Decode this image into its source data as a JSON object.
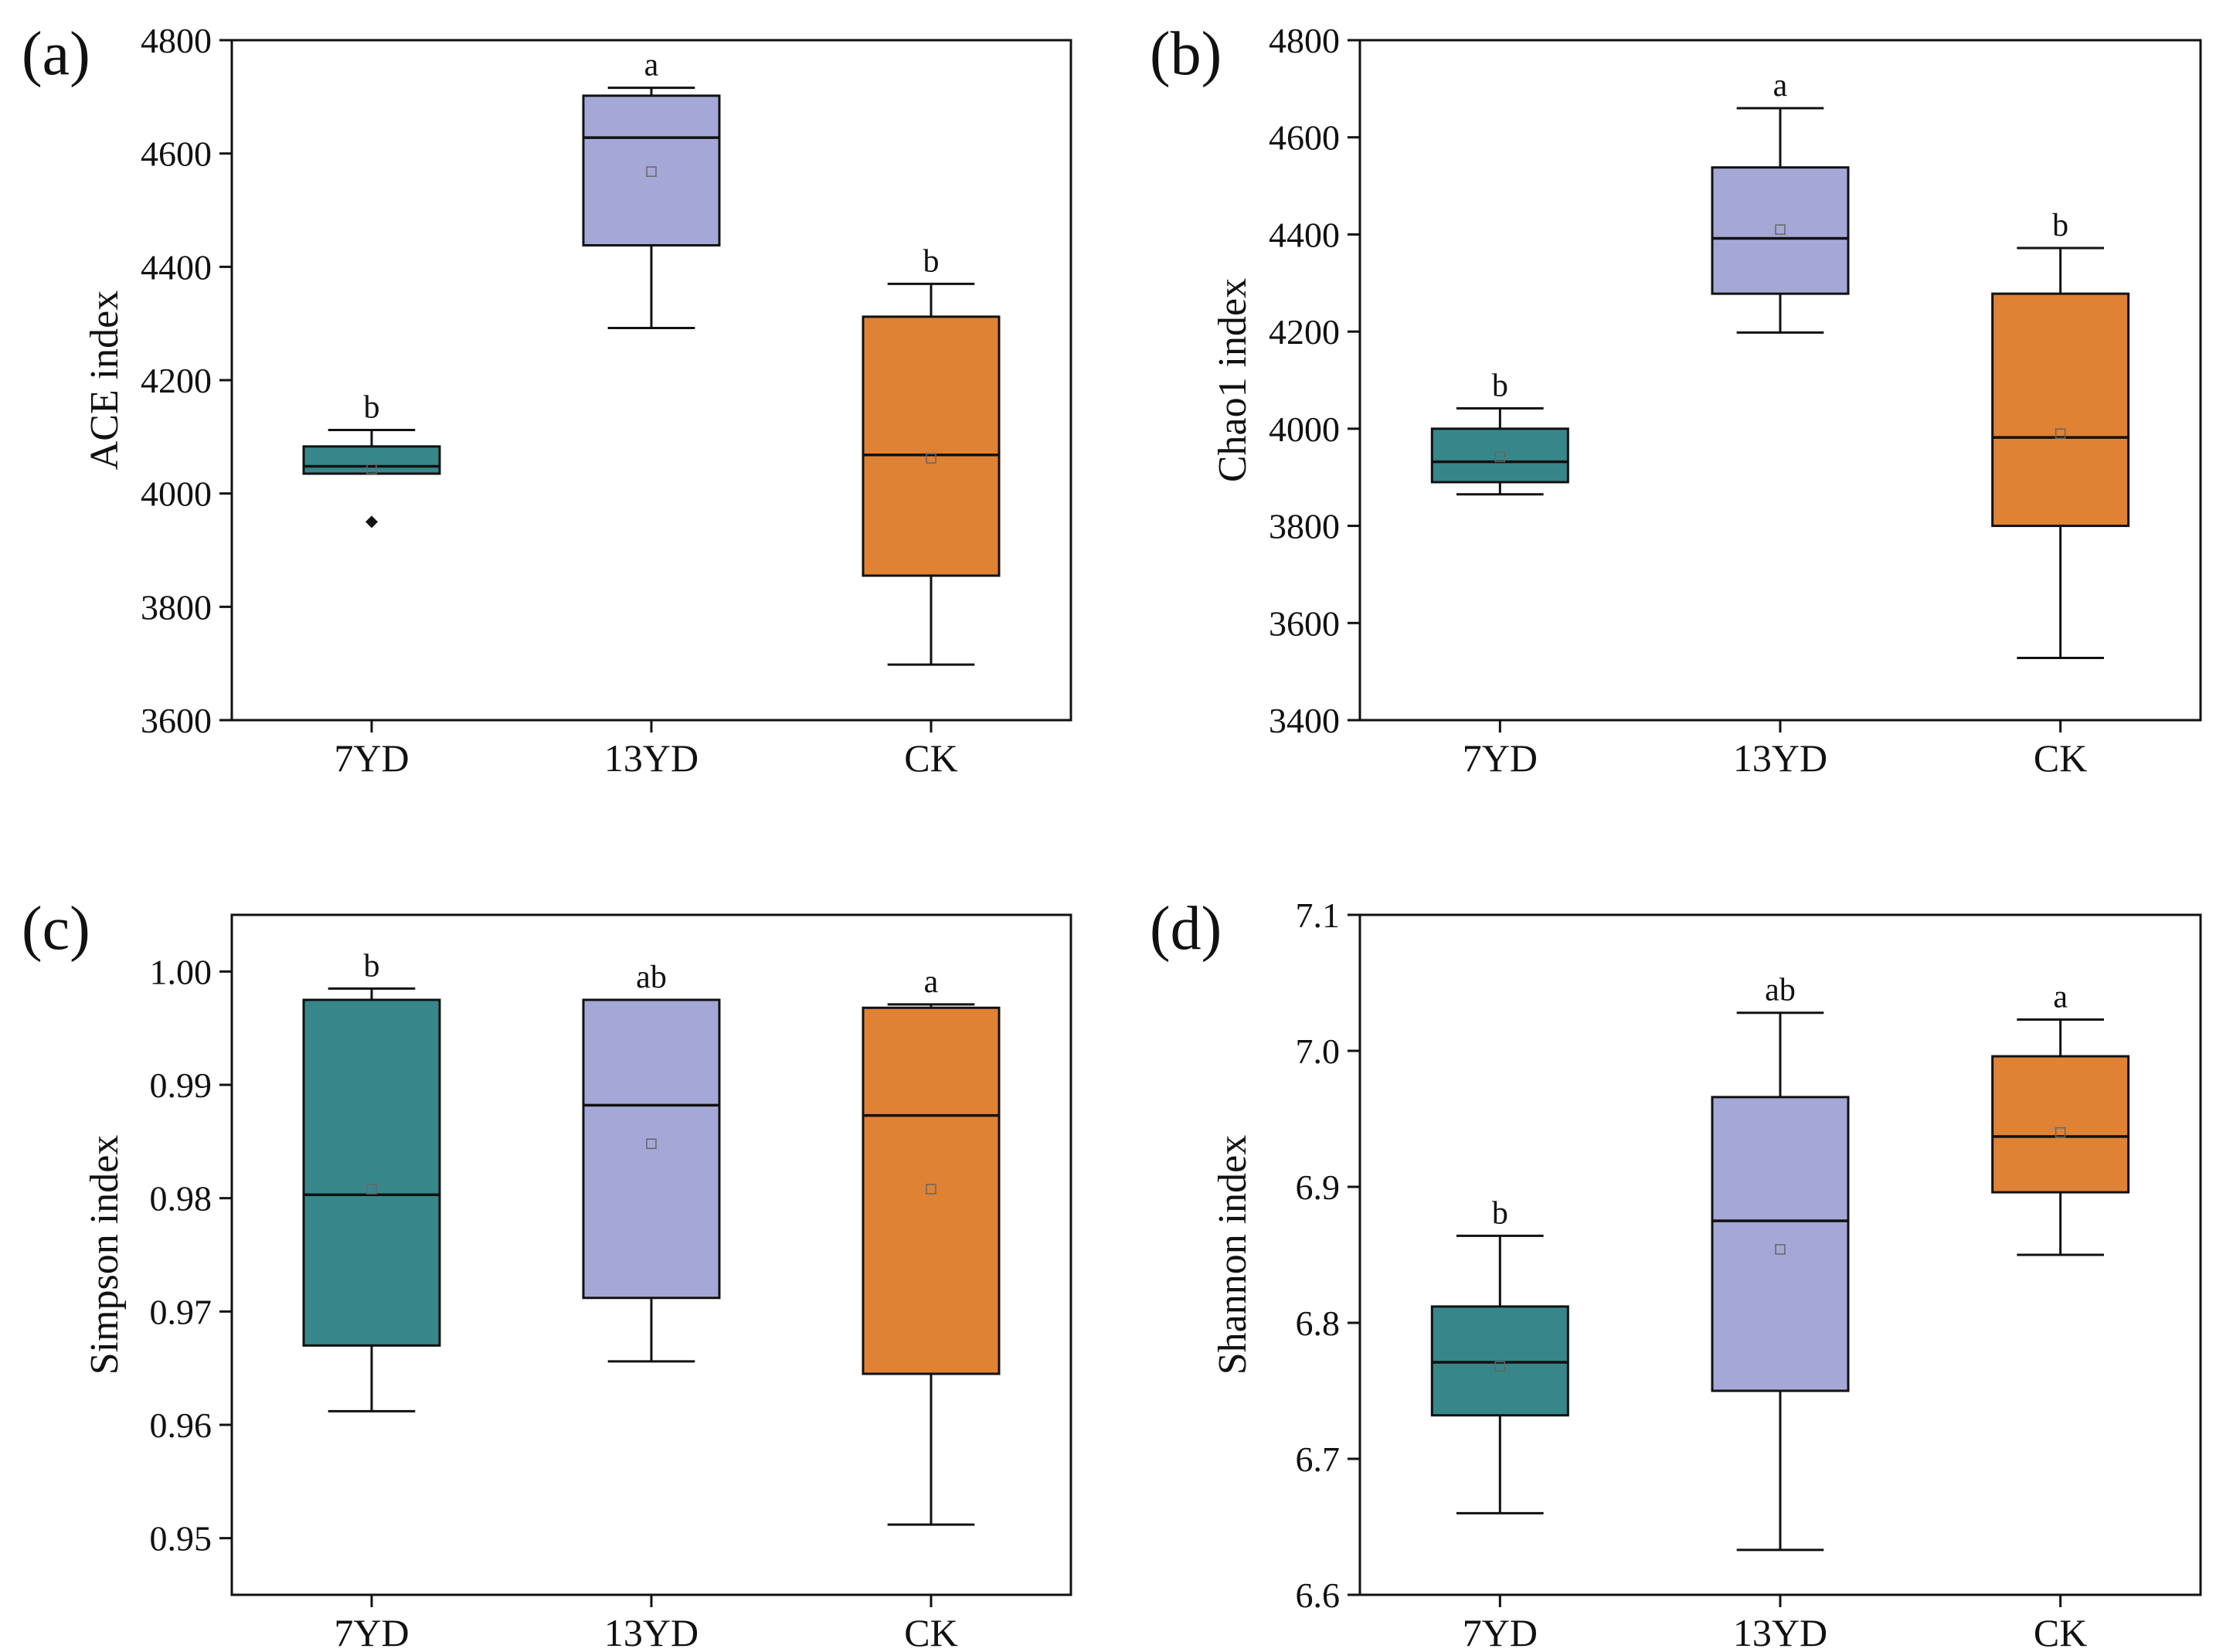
{
  "colors": {
    "7YD": "#37878a",
    "13YD": "#a5a8d6",
    "CK": "#df8234",
    "stroke": "#111111",
    "background": "#ffffff"
  },
  "chart_data": [
    {
      "id": "a",
      "type": "box",
      "panel_label": "(a)",
      "ylabel": "ACE index",
      "ylim": [
        3600,
        4800
      ],
      "yticks": [
        3600,
        3800,
        4000,
        4200,
        4400,
        4600,
        4800
      ],
      "ytick_labels": [
        "3600",
        "3800",
        "4000",
        "4200",
        "4400",
        "4600",
        "4800"
      ],
      "categories": [
        "7YD",
        "13YD",
        "CK"
      ],
      "boxes": [
        {
          "name": "7YD",
          "whisker_low": 4035,
          "q1": 4035,
          "median": 4048,
          "mean": 4043,
          "q3": 4083,
          "whisker_high": 4112,
          "letter": "b",
          "outliers": [
            3950
          ]
        },
        {
          "name": "13YD",
          "whisker_low": 4292,
          "q1": 4438,
          "median": 4628,
          "mean": 4568,
          "q3": 4702,
          "whisker_high": 4716,
          "letter": "a",
          "outliers": []
        },
        {
          "name": "CK",
          "whisker_low": 3698,
          "q1": 3855,
          "median": 4068,
          "mean": 4062,
          "q3": 4312,
          "whisker_high": 4370,
          "letter": "b",
          "outliers": []
        }
      ]
    },
    {
      "id": "b",
      "type": "box",
      "panel_label": "(b)",
      "ylabel": "Chao1 index",
      "ylim": [
        3400,
        4800
      ],
      "yticks": [
        3400,
        3600,
        3800,
        4000,
        4200,
        4400,
        4600,
        4800
      ],
      "ytick_labels": [
        "3400",
        "3600",
        "3800",
        "4000",
        "4200",
        "4400",
        "4600",
        "4800"
      ],
      "categories": [
        "7YD",
        "13YD",
        "CK"
      ],
      "boxes": [
        {
          "name": "7YD",
          "whisker_low": 3865,
          "q1": 3890,
          "median": 3932,
          "mean": 3942,
          "q3": 4000,
          "whisker_high": 4042,
          "letter": "b",
          "outliers": []
        },
        {
          "name": "13YD",
          "whisker_low": 4198,
          "q1": 4278,
          "median": 4392,
          "mean": 4410,
          "q3": 4538,
          "whisker_high": 4660,
          "letter": "a",
          "outliers": []
        },
        {
          "name": "CK",
          "whisker_low": 3528,
          "q1": 3800,
          "median": 3982,
          "mean": 3990,
          "q3": 4278,
          "whisker_high": 4372,
          "letter": "b",
          "outliers": []
        }
      ]
    },
    {
      "id": "c",
      "type": "box",
      "panel_label": "(c)",
      "ylabel": "Simpson index",
      "ylim": [
        0.945,
        1.005
      ],
      "yticks": [
        0.95,
        0.96,
        0.97,
        0.98,
        0.99,
        1.0
      ],
      "ytick_labels": [
        "0.95",
        "0.96",
        "0.97",
        "0.98",
        "0.99",
        "1.00"
      ],
      "categories": [
        "7YD",
        "13YD",
        "CK"
      ],
      "boxes": [
        {
          "name": "7YD",
          "whisker_low": 0.9612,
          "q1": 0.967,
          "median": 0.9803,
          "mean": 0.9808,
          "q3": 0.9975,
          "whisker_high": 0.9985,
          "letter": "b",
          "outliers": []
        },
        {
          "name": "13YD",
          "whisker_low": 0.9656,
          "q1": 0.9712,
          "median": 0.9882,
          "mean": 0.9848,
          "q3": 0.9975,
          "whisker_high": 0.9975,
          "letter": "ab",
          "outliers": []
        },
        {
          "name": "CK",
          "whisker_low": 0.9512,
          "q1": 0.9645,
          "median": 0.9873,
          "mean": 0.9808,
          "q3": 0.9968,
          "whisker_high": 0.9971,
          "letter": "a",
          "outliers": []
        }
      ]
    },
    {
      "id": "d",
      "type": "box",
      "panel_label": "(d)",
      "ylabel": "Shannon index",
      "ylim": [
        6.6,
        7.1
      ],
      "yticks": [
        6.6,
        6.7,
        6.8,
        6.9,
        7.0,
        7.1
      ],
      "ytick_labels": [
        "6.6",
        "6.7",
        "6.8",
        "6.9",
        "7.0",
        "7.1"
      ],
      "categories": [
        "7YD",
        "13YD",
        "CK"
      ],
      "boxes": [
        {
          "name": "7YD",
          "whisker_low": 6.66,
          "q1": 6.732,
          "median": 6.771,
          "mean": 6.768,
          "q3": 6.812,
          "whisker_high": 6.864,
          "letter": "b",
          "outliers": []
        },
        {
          "name": "13YD",
          "whisker_low": 6.633,
          "q1": 6.75,
          "median": 6.875,
          "mean": 6.854,
          "q3": 6.966,
          "whisker_high": 7.028,
          "letter": "ab",
          "outliers": []
        },
        {
          "name": "CK",
          "whisker_low": 6.85,
          "q1": 6.896,
          "median": 6.937,
          "mean": 6.94,
          "q3": 6.996,
          "whisker_high": 7.023,
          "letter": "a",
          "outliers": []
        }
      ]
    }
  ]
}
